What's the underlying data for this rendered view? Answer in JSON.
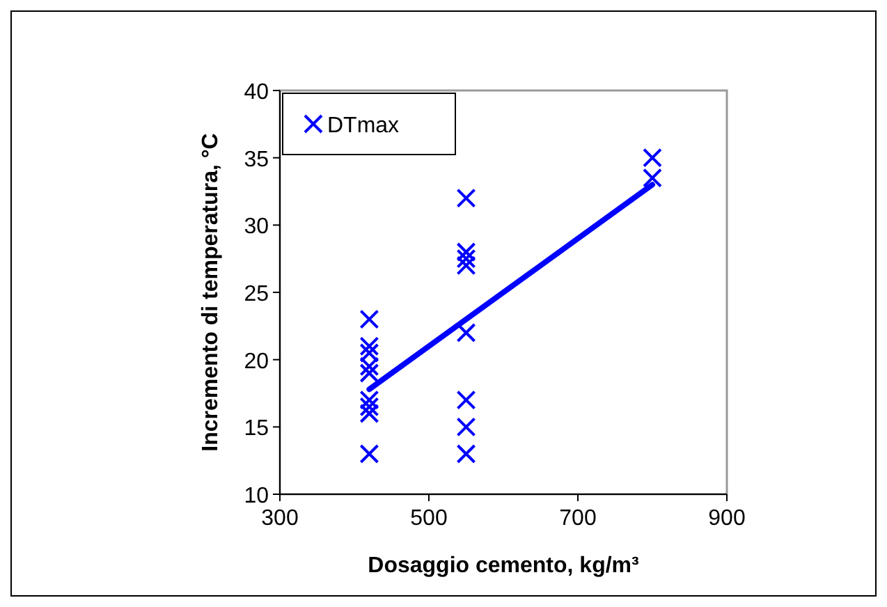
{
  "chart_data": {
    "type": "scatter",
    "xlabel": "Dosaggio cemento, kg/m³",
    "ylabel": "Incremento di temperatura, °C",
    "xlim": [
      300,
      900
    ],
    "xticks": [
      300,
      500,
      700,
      900
    ],
    "ylim": [
      10,
      40
    ],
    "yticks": [
      10,
      15,
      20,
      25,
      30,
      35,
      40
    ],
    "grid": false,
    "legend": "top left",
    "marker": "cross",
    "series": [
      {
        "name": "DTmax",
        "color": "#0000ff",
        "x": [
          420,
          420,
          420,
          420,
          420,
          420,
          420,
          420,
          420,
          550,
          550,
          550,
          550,
          550,
          550,
          550,
          550,
          800,
          800
        ],
        "values": [
          23,
          21,
          20.5,
          19.5,
          19,
          17,
          16.5,
          16,
          13,
          32,
          28,
          27.5,
          27,
          22,
          17,
          15,
          13,
          35,
          33.5
        ]
      },
      {
        "type": "line",
        "color": "#0000ff",
        "x": [
          420,
          800
        ],
        "values": [
          17.8,
          33
        ],
        "marker": "none"
      }
    ]
  }
}
